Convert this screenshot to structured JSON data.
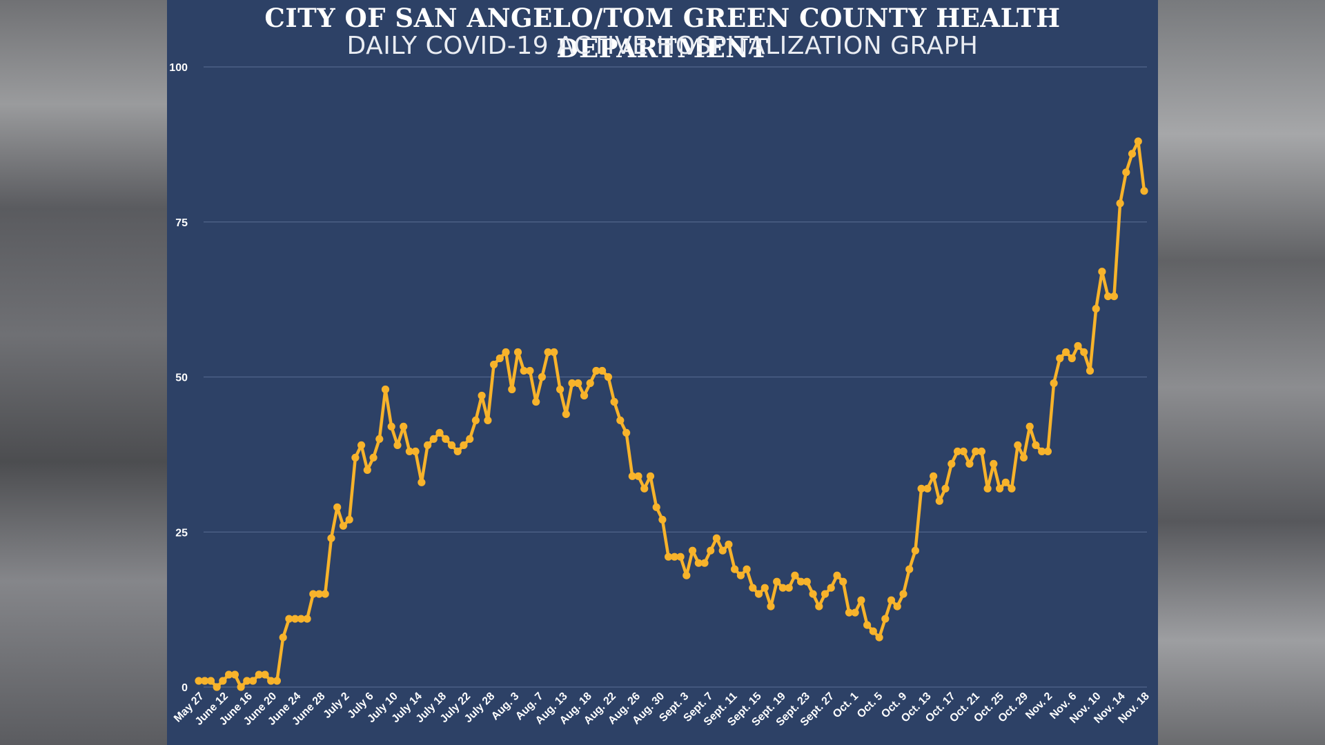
{
  "header": {
    "title": "CITY OF SAN ANGELO/TOM GREEN COUNTY HEALTH DEPARTMENT",
    "subtitle": "DAILY COVID-19 ACTIVE HOSPITALIZATION GRAPH"
  },
  "colors": {
    "background": "#2d4166",
    "line": "#f7b32b",
    "grid": "#52668c",
    "tick_text": "#ffffff"
  },
  "chart_data": {
    "type": "line",
    "title": "CITY OF SAN ANGELO/TOM GREEN COUNTY HEALTH DEPARTMENT",
    "subtitle": "DAILY COVID-19 ACTIVE HOSPITALIZATION GRAPH",
    "xlabel": "",
    "ylabel": "",
    "ylim": [
      0,
      100
    ],
    "yticks": [
      0,
      25,
      50,
      75,
      100
    ],
    "grid": true,
    "xtick_labels": [
      "May 27",
      "June 12",
      "June 16",
      "June 20",
      "June 24",
      "June 28",
      "July 2",
      "July 6",
      "July 10",
      "July 14",
      "July 18",
      "July 22",
      "July 28",
      "Aug. 3",
      "Aug. 7",
      "Aug. 13",
      "Aug. 18",
      "Aug. 22",
      "Aug. 26",
      "Aug. 30",
      "Sept. 3",
      "Sept. 7",
      "Sept. 11",
      "Sept. 15",
      "Sept. 19",
      "Sept. 23",
      "Sept. 27",
      "Oct. 1",
      "Oct. 5",
      "Oct. 9",
      "Oct. 13",
      "Oct. 17",
      "Oct. 21",
      "Oct. 25",
      "Oct. 29",
      "Nov. 2",
      "Nov. 6",
      "Nov. 10",
      "Nov. 14",
      "Nov. 18"
    ],
    "series": [
      {
        "values": [
          1,
          1,
          1,
          0,
          1,
          2,
          2,
          0,
          1,
          1,
          2,
          2,
          1,
          1,
          8,
          11,
          11,
          11,
          11,
          15,
          15,
          15,
          24,
          29,
          26,
          27,
          37,
          39,
          35,
          37,
          40,
          48,
          42,
          39,
          42,
          38,
          38,
          33,
          39,
          40,
          41,
          40,
          39,
          38,
          39,
          40,
          43,
          47,
          43,
          52,
          53,
          54,
          48,
          54,
          51,
          51,
          46,
          50,
          54,
          54,
          48,
          44,
          49,
          49,
          47,
          49,
          51,
          51,
          50,
          46,
          43,
          41,
          34,
          34,
          32,
          34,
          29,
          27,
          21,
          21,
          21,
          18,
          22,
          20,
          20,
          22,
          24,
          22,
          23,
          19,
          18,
          19,
          16,
          15,
          16,
          13,
          17,
          16,
          16,
          18,
          17,
          17,
          15,
          13,
          15,
          16,
          18,
          17,
          12,
          12,
          14,
          10,
          9,
          8,
          11,
          14,
          13,
          15,
          19,
          22,
          32,
          32,
          34,
          30,
          32,
          36,
          38,
          38,
          36,
          38,
          38,
          32,
          36,
          32,
          33,
          32,
          39,
          37,
          42,
          39,
          38,
          38,
          49,
          53,
          54,
          53,
          55,
          54,
          51,
          61,
          67,
          63,
          63,
          78,
          83,
          86,
          88,
          80
        ]
      }
    ]
  }
}
